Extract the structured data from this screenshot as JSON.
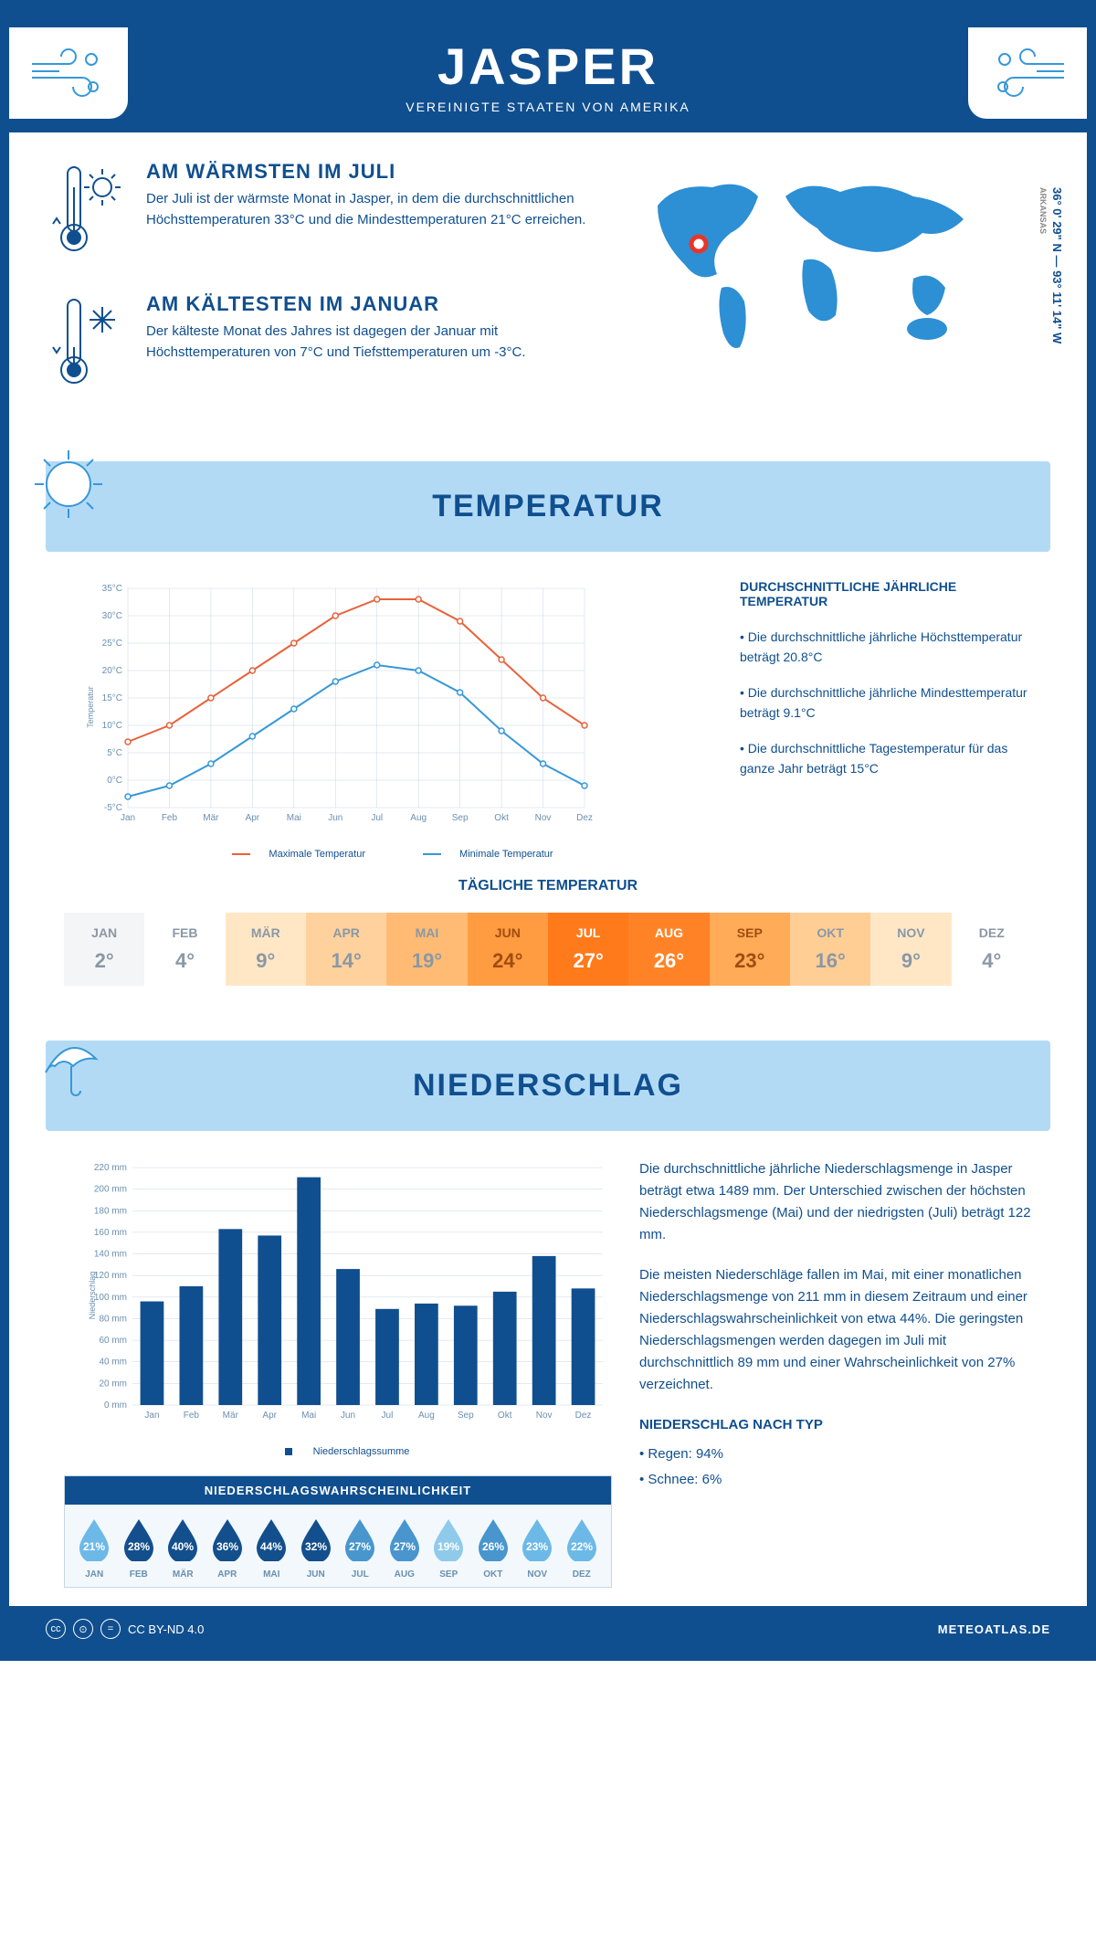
{
  "header": {
    "title": "JASPER",
    "subtitle": "VEREINIGTE STAATEN VON AMERIKA"
  },
  "coords": {
    "lat": "36° 0' 29\" N",
    "lon": "93° 11' 14\" W",
    "state": "ARKANSAS"
  },
  "warm": {
    "title": "AM WÄRMSTEN IM JULI",
    "text": "Der Juli ist der wärmste Monat in Jasper, in dem die durchschnittlichen Höchsttemperaturen 33°C und die Mindesttemperaturen 21°C erreichen."
  },
  "cold": {
    "title": "AM KÄLTESTEN IM JANUAR",
    "text": "Der kälteste Monat des Jahres ist dagegen der Januar mit Höchsttemperaturen von 7°C und Tiefsttemperaturen um -3°C."
  },
  "temp_section": {
    "title": "TEMPERATUR",
    "stats_title": "DURCHSCHNITTLICHE JÄHRLICHE TEMPERATUR",
    "b1": "• Die durchschnittliche jährliche Höchsttemperatur beträgt 20.8°C",
    "b2": "• Die durchschnittliche jährliche Mindesttemperatur beträgt 9.1°C",
    "b3": "• Die durchschnittliche Tagestemperatur für das ganze Jahr beträgt 15°C",
    "ylabel": "Temperatur",
    "legend_max": "Maximale Temperatur",
    "legend_min": "Minimale Temperatur"
  },
  "line_chart": {
    "type": "line",
    "months": [
      "Jan",
      "Feb",
      "Mär",
      "Apr",
      "Mai",
      "Jun",
      "Jul",
      "Aug",
      "Sep",
      "Okt",
      "Nov",
      "Dez"
    ],
    "max": [
      7,
      10,
      15,
      20,
      25,
      30,
      33,
      33,
      29,
      22,
      15,
      10
    ],
    "min": [
      -3,
      -1,
      3,
      8,
      13,
      18,
      21,
      20,
      16,
      9,
      3,
      -1
    ],
    "max_color": "#e8623a",
    "min_color": "#3698d9",
    "ymin": -5,
    "ymax": 35,
    "ystep": 5,
    "grid_color": "#c8d6e4",
    "bg": "#ffffff",
    "axis_fontsize": 10
  },
  "daily": {
    "title": "TÄGLICHE TEMPERATUR",
    "months": [
      "JAN",
      "FEB",
      "MÄR",
      "APR",
      "MAI",
      "JUN",
      "JUL",
      "AUG",
      "SEP",
      "OKT",
      "NOV",
      "DEZ"
    ],
    "values": [
      "2°",
      "4°",
      "9°",
      "14°",
      "19°",
      "24°",
      "27°",
      "26°",
      "23°",
      "16°",
      "9°",
      "4°"
    ],
    "bg_colors": [
      "#f4f5f6",
      "#ffffff",
      "#ffe7c6",
      "#ffd19c",
      "#ffbb73",
      "#ff9b40",
      "#ff7a1a",
      "#ff8326",
      "#ffab58",
      "#ffce95",
      "#ffe7c6",
      "#ffffff"
    ],
    "text_colors": [
      "#8a98a6",
      "#8a98a6",
      "#8a98a6",
      "#8a98a6",
      "#8a98a6",
      "#a04d10",
      "#ffffff",
      "#ffffff",
      "#a04d10",
      "#8a98a6",
      "#8a98a6",
      "#8a98a6"
    ]
  },
  "precip_section": {
    "title": "NIEDERSCHLAG",
    "p1": "Die durchschnittliche jährliche Niederschlagsmenge in Jasper beträgt etwa 1489 mm. Der Unterschied zwischen der höchsten Niederschlagsmenge (Mai) und der niedrigsten (Juli) beträgt 122 mm.",
    "p2": "Die meisten Niederschläge fallen im Mai, mit einer monatlichen Niederschlagsmenge von 211 mm in diesem Zeitraum und einer Niederschlagswahrscheinlichkeit von etwa 44%. Die geringsten Niederschlagsmengen werden dagegen im Juli mit durchschnittlich 89 mm und einer Wahrscheinlichkeit von 27% verzeichnet.",
    "type_title": "NIEDERSCHLAG NACH TYP",
    "type1": "• Regen: 94%",
    "type2": "• Schnee: 6%",
    "ylabel": "Niederschlag",
    "legend": "Niederschlagssumme"
  },
  "bar_chart": {
    "type": "bar",
    "months": [
      "Jan",
      "Feb",
      "Mär",
      "Apr",
      "Mai",
      "Jun",
      "Jul",
      "Aug",
      "Sep",
      "Okt",
      "Nov",
      "Dez"
    ],
    "values": [
      96,
      110,
      163,
      157,
      211,
      126,
      89,
      94,
      92,
      105,
      138,
      108
    ],
    "bar_color": "#104f8f",
    "ymin": 0,
    "ymax": 220,
    "ystep": 20,
    "grid_color": "#c8d6e4",
    "axis_fontsize": 10
  },
  "prob": {
    "title": "NIEDERSCHLAGSWAHRSCHEINLICHKEIT",
    "months": [
      "JAN",
      "FEB",
      "MÄR",
      "APR",
      "MAI",
      "JUN",
      "JUL",
      "AUG",
      "SEP",
      "OKT",
      "NOV",
      "DEZ"
    ],
    "values": [
      "21%",
      "28%",
      "40%",
      "36%",
      "44%",
      "32%",
      "27%",
      "27%",
      "19%",
      "26%",
      "23%",
      "22%"
    ],
    "colors": [
      "#6cb9e8",
      "#134f8c",
      "#134f8c",
      "#134f8c",
      "#134f8c",
      "#134f8c",
      "#4896cd",
      "#4896cd",
      "#8fcaea",
      "#4896cd",
      "#6cb9e8",
      "#6cb9e8"
    ]
  },
  "footer": {
    "license": "CC BY-ND 4.0",
    "site": "METEOATLAS.DE"
  },
  "colors": {
    "primary": "#104f8f",
    "light_blue": "#b3daf5",
    "accent_blue": "#3698d9"
  }
}
